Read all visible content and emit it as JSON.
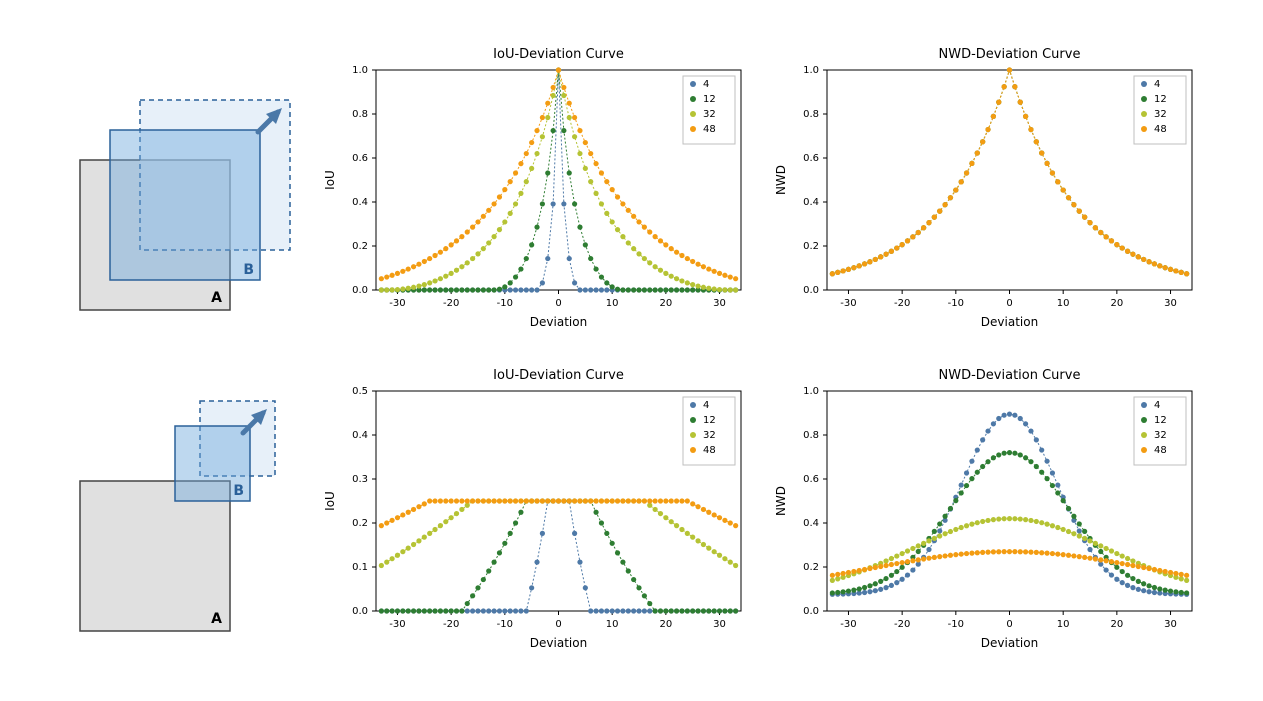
{
  "colors": {
    "series": {
      "4": "#4e79a7",
      "12": "#2e7d32",
      "32": "#b5c334",
      "48": "#f39c12"
    },
    "grid": "#ffffff",
    "axis": "#000000",
    "legend_border": "#bfbfbf",
    "background": "#ffffff",
    "box_a_fill": "#cccccc",
    "box_a_stroke": "#444444",
    "box_b_fill": "#6fa8dc",
    "box_b_stroke": "#2a6099",
    "box_b_dash_fill": "#cfe2f3",
    "arrow": "#4a78a8"
  },
  "legend_labels": [
    "4",
    "12",
    "32",
    "48"
  ],
  "diagram_labels": {
    "A": "A",
    "B": "B"
  },
  "charts": [
    {
      "id": "iou_top",
      "title": "IoU-Deviation Curve",
      "xlabel": "Deviation",
      "ylabel": "IoU",
      "xlim": [
        -34,
        34
      ],
      "ylim": [
        0,
        1.0
      ],
      "xticks": [
        -30,
        -20,
        -10,
        0,
        10,
        20,
        30
      ],
      "yticks": [
        0.0,
        0.2,
        0.4,
        0.6,
        0.8,
        1.0
      ],
      "line_dash": "2,2",
      "marker_radius": 2.6,
      "legend_pos": "topright",
      "series": [
        {
          "label": "4",
          "color": "#4e79a7",
          "mode": "iou_same",
          "scale": 4
        },
        {
          "label": "12",
          "color": "#2e7d32",
          "mode": "iou_same",
          "scale": 12
        },
        {
          "label": "32",
          "color": "#b5c334",
          "mode": "iou_same",
          "scale": 32
        },
        {
          "label": "48",
          "color": "#f39c12",
          "mode": "iou_same",
          "scale": 48
        }
      ]
    },
    {
      "id": "nwd_top",
      "title": "NWD-Deviation Curve",
      "xlabel": "Deviation",
      "ylabel": "NWD",
      "xlim": [
        -34,
        34
      ],
      "ylim": [
        0,
        1.0
      ],
      "xticks": [
        -30,
        -20,
        -10,
        0,
        10,
        20,
        30
      ],
      "yticks": [
        0.0,
        0.2,
        0.4,
        0.6,
        0.8,
        1.0
      ],
      "line_dash": "2,2",
      "marker_radius": 2.6,
      "legend_pos": "topright",
      "series": [
        {
          "label": "4",
          "color": "#4e79a7",
          "mode": "nwd_same",
          "scale": 4
        },
        {
          "label": "12",
          "color": "#2e7d32",
          "mode": "nwd_same",
          "scale": 12
        },
        {
          "label": "32",
          "color": "#b5c334",
          "mode": "nwd_same",
          "scale": 32
        },
        {
          "label": "48",
          "color": "#f39c12",
          "mode": "nwd_same",
          "scale": 48
        }
      ]
    },
    {
      "id": "iou_bot",
      "title": "IoU-Deviation Curve",
      "xlabel": "Deviation",
      "ylabel": "IoU",
      "xlim": [
        -34,
        34
      ],
      "ylim": [
        0,
        0.5
      ],
      "xticks": [
        -30,
        -20,
        -10,
        0,
        10,
        20,
        30
      ],
      "yticks": [
        0.0,
        0.1,
        0.2,
        0.3,
        0.4,
        0.5
      ],
      "line_dash": "2,2",
      "marker_radius": 2.6,
      "legend_pos": "topright",
      "series": [
        {
          "label": "4",
          "color": "#4e79a7",
          "mode": "iou_half",
          "scale": 4
        },
        {
          "label": "12",
          "color": "#2e7d32",
          "mode": "iou_half",
          "scale": 12
        },
        {
          "label": "32",
          "color": "#b5c334",
          "mode": "iou_half",
          "scale": 32
        },
        {
          "label": "48",
          "color": "#f39c12",
          "mode": "iou_half",
          "scale": 48
        }
      ]
    },
    {
      "id": "nwd_bot",
      "title": "NWD-Deviation Curve",
      "xlabel": "Deviation",
      "ylabel": "NWD",
      "xlim": [
        -34,
        34
      ],
      "ylim": [
        0,
        1.0
      ],
      "xticks": [
        -30,
        -20,
        -10,
        0,
        10,
        20,
        30
      ],
      "yticks": [
        0.0,
        0.2,
        0.4,
        0.6,
        0.8,
        1.0
      ],
      "line_dash": "2,2",
      "marker_radius": 2.6,
      "legend_pos": "topright",
      "series": [
        {
          "label": "4",
          "color": "#4e79a7",
          "mode": "nwd_half",
          "scale": 4
        },
        {
          "label": "12",
          "color": "#2e7d32",
          "mode": "nwd_half",
          "scale": 12
        },
        {
          "label": "32",
          "color": "#b5c334",
          "mode": "nwd_half",
          "scale": 32
        },
        {
          "label": "48",
          "color": "#f39c12",
          "mode": "nwd_half",
          "scale": 48
        }
      ]
    }
  ],
  "diagrams": [
    {
      "id": "top",
      "a_size": 150,
      "b_size": 150,
      "b_offset": [
        30,
        -30
      ],
      "dash_offset": [
        60,
        -60
      ]
    },
    {
      "id": "bot",
      "a_size": 150,
      "b_size": 75,
      "b_offset": [
        95,
        -55
      ],
      "dash_offset": [
        120,
        -80
      ]
    }
  ]
}
